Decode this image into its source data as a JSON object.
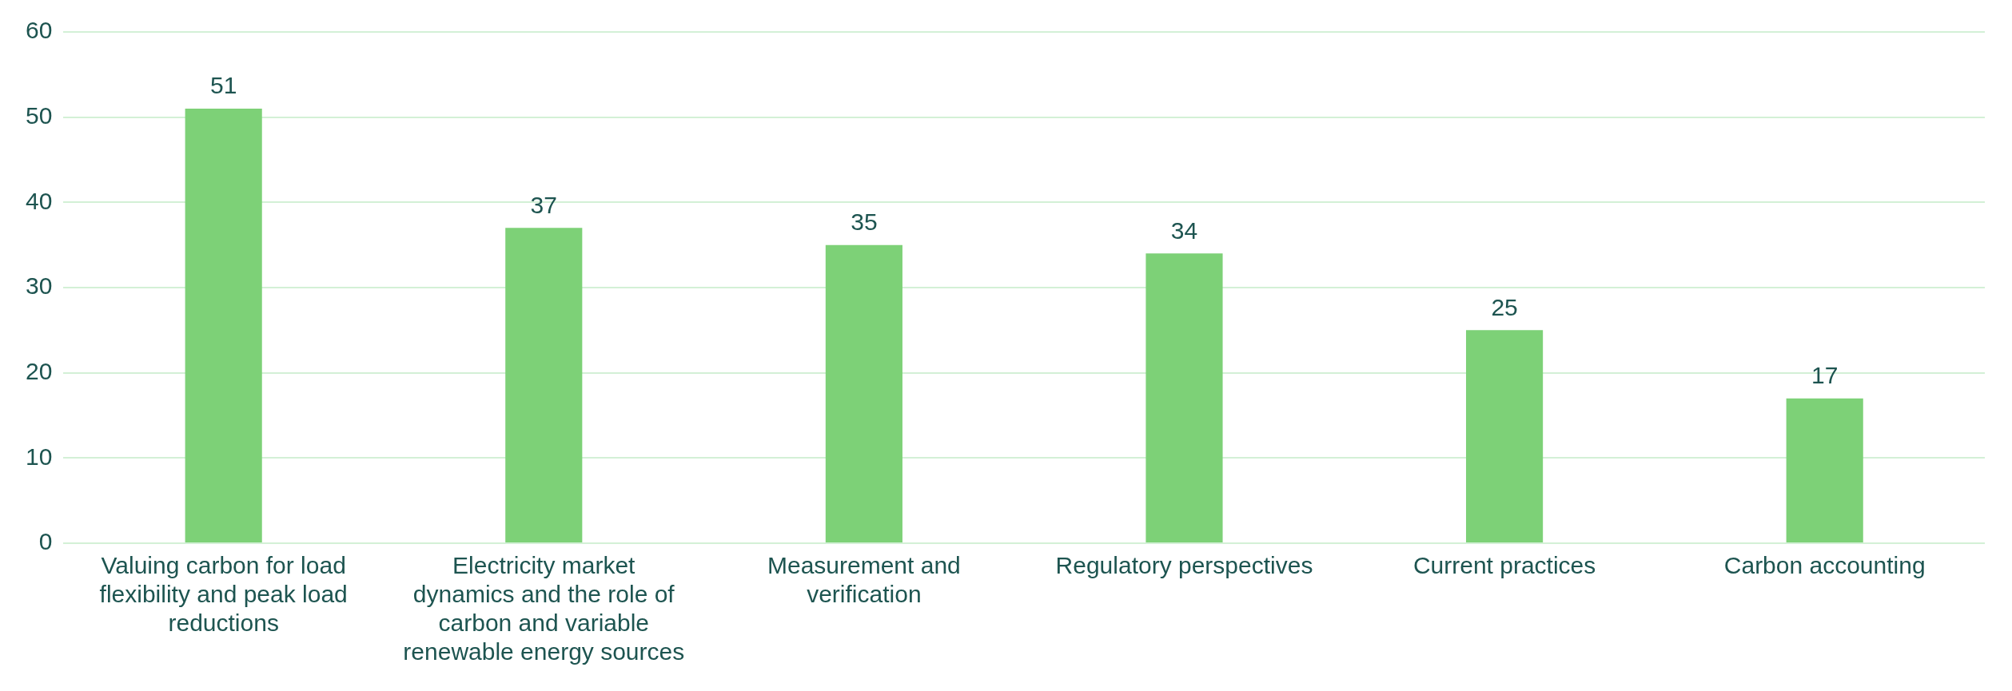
{
  "chart_data": {
    "type": "bar",
    "categories": [
      "Valuing carbon for load flexibility and peak load reductions",
      "Electricity market dynamics and the role of carbon and variable renewable energy sources",
      "Measurement and verification",
      "Regulatory perspectives",
      "Current practices",
      "Carbon accounting"
    ],
    "values": [
      51,
      37,
      35,
      34,
      25,
      17
    ],
    "color": "#7dd177",
    "ylim": [
      0,
      60
    ],
    "yticks": [
      0,
      10,
      20,
      30,
      40,
      50,
      60
    ],
    "grid": "y",
    "data_labels": true,
    "legend": false
  }
}
